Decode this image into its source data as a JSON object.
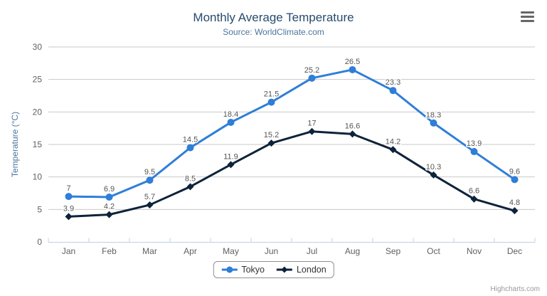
{
  "chart_data": {
    "type": "line",
    "title": "Monthly Average Temperature",
    "subtitle": "Source: WorldClimate.com",
    "categories": [
      "Jan",
      "Feb",
      "Mar",
      "Apr",
      "May",
      "Jun",
      "Jul",
      "Aug",
      "Sep",
      "Oct",
      "Nov",
      "Dec"
    ],
    "series": [
      {
        "name": "Tokyo",
        "color": "#2f7ed8",
        "marker": "circle",
        "values": [
          7,
          6.9,
          9.5,
          14.5,
          18.4,
          21.5,
          25.2,
          26.5,
          23.3,
          18.3,
          13.9,
          9.6
        ]
      },
      {
        "name": "London",
        "color": "#0d233a",
        "marker": "diamond",
        "values": [
          3.9,
          4.2,
          5.7,
          8.5,
          11.9,
          15.2,
          17,
          16.6,
          14.2,
          10.3,
          6.6,
          4.8
        ]
      }
    ],
    "xlabel": "",
    "ylabel": "Temperature (°C)",
    "ylim": [
      0,
      30
    ],
    "ytick_interval": 5,
    "yticks": [
      0,
      5,
      10,
      15,
      20,
      25,
      30
    ],
    "grid": true,
    "data_labels": true,
    "legend_position": "bottom"
  },
  "icons": {
    "export_menu": "hamburger-menu-icon"
  },
  "credits": {
    "label": "Highcharts.com"
  },
  "colors": {
    "title": "#274b6d",
    "subtitle": "#4d759e",
    "axis_labels": "#606060",
    "gridline": "#c9c9c9",
    "axis_line": "#c0d0e0",
    "data_label": "#555555",
    "legend_text": "#333333",
    "credits_text": "#999999"
  }
}
